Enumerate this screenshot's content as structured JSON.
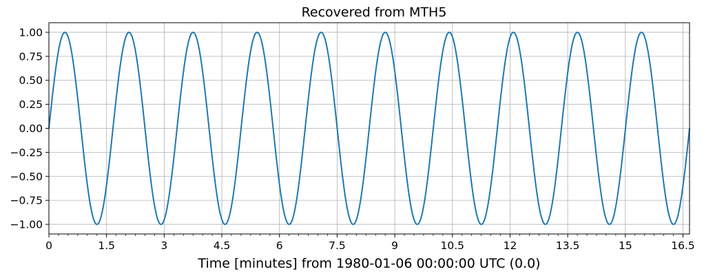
{
  "chart_data": {
    "type": "line",
    "title": "Recovered from MTH5",
    "xlabel": "Time [minutes] from 1980-01-06 00:00:00 UTC (0.0)",
    "ylabel": "",
    "xlim": [
      0,
      16.67
    ],
    "ylim": [
      -1.1,
      1.1
    ],
    "grid": true,
    "legend": "none",
    "color": "#1f77b4",
    "x_ticks": [
      0,
      1.5,
      3,
      4.5,
      6,
      7.5,
      9,
      10.5,
      12,
      13.5,
      15,
      16.5
    ],
    "x_tick_labels": [
      "0",
      "1.5",
      "3",
      "4.5",
      "6",
      "7.5",
      "9",
      "10.5",
      "12",
      "13.5",
      "15",
      "16.5"
    ],
    "y_ticks": [
      1.0,
      0.75,
      0.5,
      0.25,
      0.0,
      -0.25,
      -0.5,
      -0.75,
      -1.0
    ],
    "y_tick_labels": [
      "1.00",
      "0.75",
      "0.50",
      "0.25",
      "0.00",
      "−0.25",
      "−0.50",
      "−0.75",
      "−1.00"
    ],
    "series": [
      {
        "function": "sine",
        "amplitude": 1.0,
        "period_minutes": 1.667,
        "phase": 0.0,
        "x_start": 0,
        "x_end": 16.67
      }
    ]
  }
}
